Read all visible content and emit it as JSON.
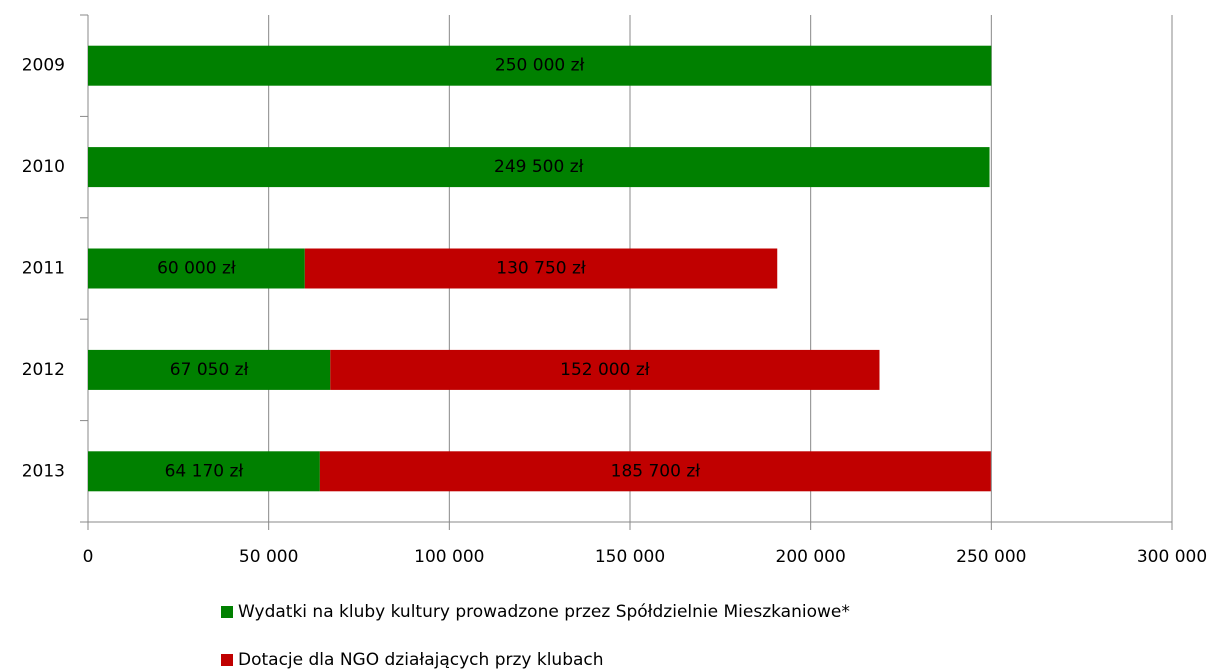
{
  "chart_data": {
    "type": "stacked-bar-horizontal",
    "categories": [
      "2009",
      "2010",
      "2011",
      "2012",
      "2013"
    ],
    "series": [
      {
        "name": "Wydatki na kluby kultury prowadzone przez Spółdzielnie Mieszkaniowe*",
        "color": "#008000",
        "values": [
          250000,
          249500,
          60000,
          67050,
          64170
        ],
        "value_labels": [
          "250 000 zł",
          "249 500 zł",
          "60 000 zł",
          "67 050 zł",
          "64 170 zł"
        ]
      },
      {
        "name": "Dotacje dla NGO działających przy klubach",
        "color": "#c00000",
        "values": [
          null,
          null,
          130750,
          152000,
          185700
        ],
        "value_labels": [
          null,
          null,
          "130 750 zł",
          "152 000 zł",
          "185 700 zł"
        ]
      }
    ],
    "xlim": [
      0,
      300000
    ],
    "xticks": [
      0,
      {
        "value": 50000,
        "label": "50 000"
      },
      {
        "value": 100000,
        "label": "100 000"
      },
      {
        "value": 150000,
        "label": "150 000"
      },
      {
        "value": 200000,
        "label": "200 000"
      },
      {
        "value": 250000,
        "label": "250 000"
      },
      {
        "value": 300000,
        "label": "300 000"
      }
    ],
    "grid": true
  }
}
